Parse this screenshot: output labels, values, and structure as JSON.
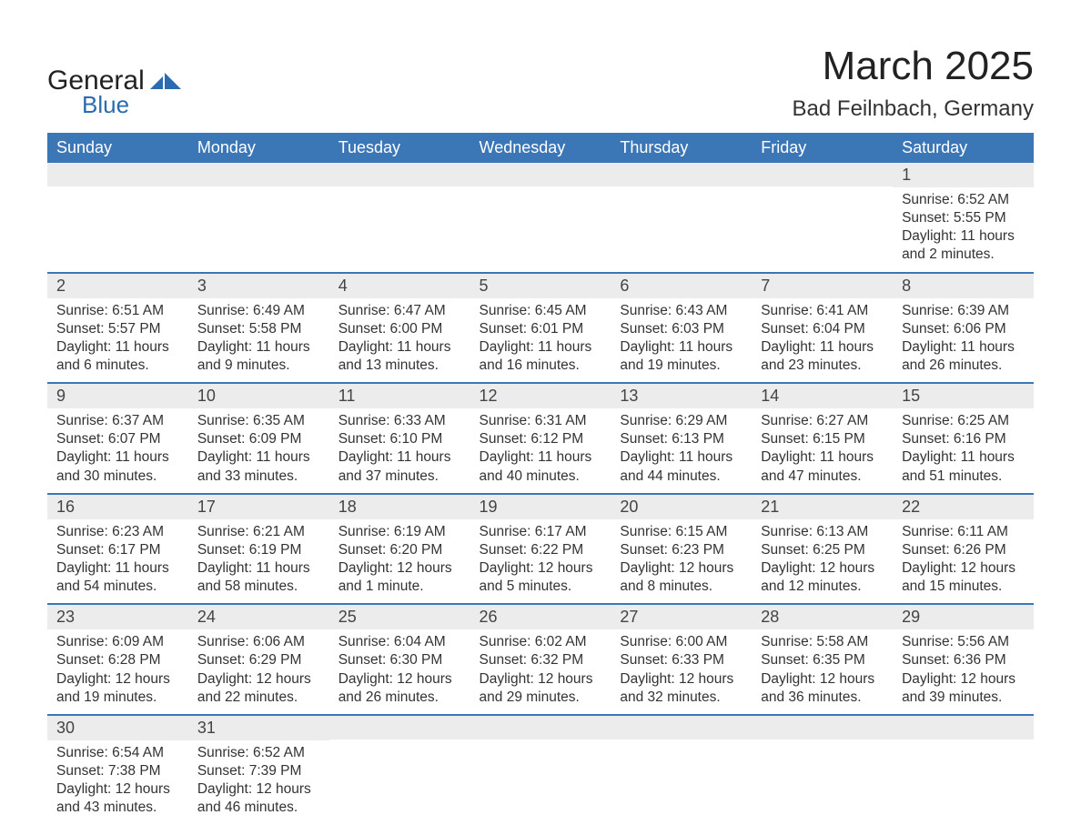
{
  "logo": {
    "word1": "General",
    "word2": "Blue",
    "brand_color": "#2b6cb0",
    "text_color": "#222222"
  },
  "header": {
    "title": "March 2025",
    "location": "Bad Feilnbach, Germany",
    "title_fontsize": 44,
    "location_fontsize": 24
  },
  "calendar": {
    "header_bg": "#3b76b6",
    "header_fg": "#ffffff",
    "divider_color": "#3b76b6",
    "daynum_bg": "#ececec",
    "text_color": "#333333",
    "body_fontsize": 15.5,
    "columns": [
      "Sunday",
      "Monday",
      "Tuesday",
      "Wednesday",
      "Thursday",
      "Friday",
      "Saturday"
    ],
    "weeks": [
      [
        null,
        null,
        null,
        null,
        null,
        null,
        {
          "n": "1",
          "sunrise": "6:52 AM",
          "sunset": "5:55 PM",
          "daylight": "11 hours and 2 minutes."
        }
      ],
      [
        {
          "n": "2",
          "sunrise": "6:51 AM",
          "sunset": "5:57 PM",
          "daylight": "11 hours and 6 minutes."
        },
        {
          "n": "3",
          "sunrise": "6:49 AM",
          "sunset": "5:58 PM",
          "daylight": "11 hours and 9 minutes."
        },
        {
          "n": "4",
          "sunrise": "6:47 AM",
          "sunset": "6:00 PM",
          "daylight": "11 hours and 13 minutes."
        },
        {
          "n": "5",
          "sunrise": "6:45 AM",
          "sunset": "6:01 PM",
          "daylight": "11 hours and 16 minutes."
        },
        {
          "n": "6",
          "sunrise": "6:43 AM",
          "sunset": "6:03 PM",
          "daylight": "11 hours and 19 minutes."
        },
        {
          "n": "7",
          "sunrise": "6:41 AM",
          "sunset": "6:04 PM",
          "daylight": "11 hours and 23 minutes."
        },
        {
          "n": "8",
          "sunrise": "6:39 AM",
          "sunset": "6:06 PM",
          "daylight": "11 hours and 26 minutes."
        }
      ],
      [
        {
          "n": "9",
          "sunrise": "6:37 AM",
          "sunset": "6:07 PM",
          "daylight": "11 hours and 30 minutes."
        },
        {
          "n": "10",
          "sunrise": "6:35 AM",
          "sunset": "6:09 PM",
          "daylight": "11 hours and 33 minutes."
        },
        {
          "n": "11",
          "sunrise": "6:33 AM",
          "sunset": "6:10 PM",
          "daylight": "11 hours and 37 minutes."
        },
        {
          "n": "12",
          "sunrise": "6:31 AM",
          "sunset": "6:12 PM",
          "daylight": "11 hours and 40 minutes."
        },
        {
          "n": "13",
          "sunrise": "6:29 AM",
          "sunset": "6:13 PM",
          "daylight": "11 hours and 44 minutes."
        },
        {
          "n": "14",
          "sunrise": "6:27 AM",
          "sunset": "6:15 PM",
          "daylight": "11 hours and 47 minutes."
        },
        {
          "n": "15",
          "sunrise": "6:25 AM",
          "sunset": "6:16 PM",
          "daylight": "11 hours and 51 minutes."
        }
      ],
      [
        {
          "n": "16",
          "sunrise": "6:23 AM",
          "sunset": "6:17 PM",
          "daylight": "11 hours and 54 minutes."
        },
        {
          "n": "17",
          "sunrise": "6:21 AM",
          "sunset": "6:19 PM",
          "daylight": "11 hours and 58 minutes."
        },
        {
          "n": "18",
          "sunrise": "6:19 AM",
          "sunset": "6:20 PM",
          "daylight": "12 hours and 1 minute."
        },
        {
          "n": "19",
          "sunrise": "6:17 AM",
          "sunset": "6:22 PM",
          "daylight": "12 hours and 5 minutes."
        },
        {
          "n": "20",
          "sunrise": "6:15 AM",
          "sunset": "6:23 PM",
          "daylight": "12 hours and 8 minutes."
        },
        {
          "n": "21",
          "sunrise": "6:13 AM",
          "sunset": "6:25 PM",
          "daylight": "12 hours and 12 minutes."
        },
        {
          "n": "22",
          "sunrise": "6:11 AM",
          "sunset": "6:26 PM",
          "daylight": "12 hours and 15 minutes."
        }
      ],
      [
        {
          "n": "23",
          "sunrise": "6:09 AM",
          "sunset": "6:28 PM",
          "daylight": "12 hours and 19 minutes."
        },
        {
          "n": "24",
          "sunrise": "6:06 AM",
          "sunset": "6:29 PM",
          "daylight": "12 hours and 22 minutes."
        },
        {
          "n": "25",
          "sunrise": "6:04 AM",
          "sunset": "6:30 PM",
          "daylight": "12 hours and 26 minutes."
        },
        {
          "n": "26",
          "sunrise": "6:02 AM",
          "sunset": "6:32 PM",
          "daylight": "12 hours and 29 minutes."
        },
        {
          "n": "27",
          "sunrise": "6:00 AM",
          "sunset": "6:33 PM",
          "daylight": "12 hours and 32 minutes."
        },
        {
          "n": "28",
          "sunrise": "5:58 AM",
          "sunset": "6:35 PM",
          "daylight": "12 hours and 36 minutes."
        },
        {
          "n": "29",
          "sunrise": "5:56 AM",
          "sunset": "6:36 PM",
          "daylight": "12 hours and 39 minutes."
        }
      ],
      [
        {
          "n": "30",
          "sunrise": "6:54 AM",
          "sunset": "7:38 PM",
          "daylight": "12 hours and 43 minutes."
        },
        {
          "n": "31",
          "sunrise": "6:52 AM",
          "sunset": "7:39 PM",
          "daylight": "12 hours and 46 minutes."
        },
        null,
        null,
        null,
        null,
        null
      ]
    ],
    "labels": {
      "sunrise": "Sunrise:",
      "sunset": "Sunset:",
      "daylight": "Daylight:"
    }
  }
}
